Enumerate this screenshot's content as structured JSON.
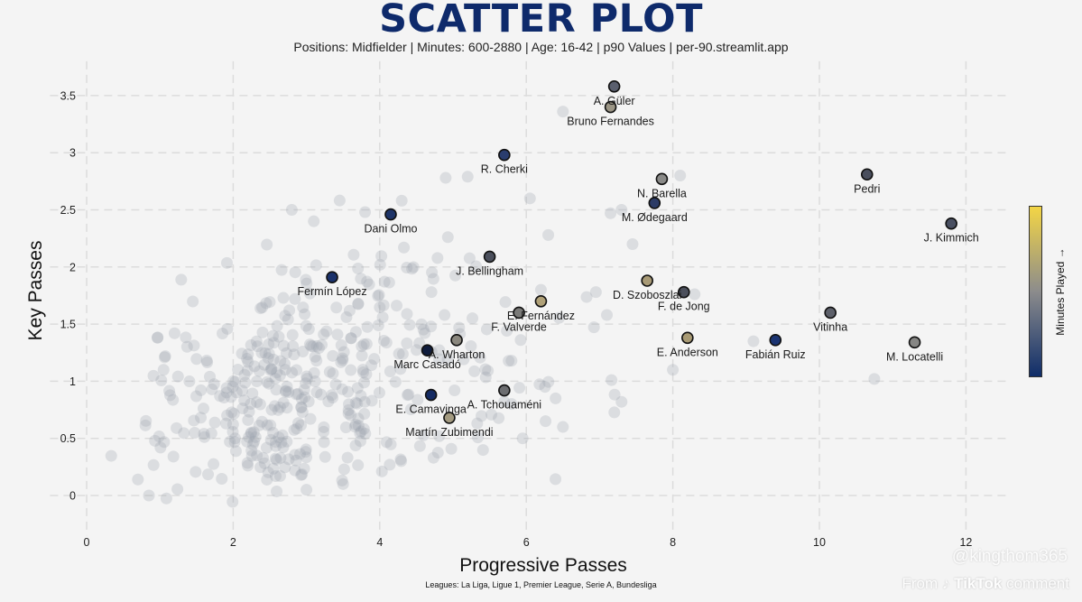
{
  "header": {
    "title": "SCATTER PLOT",
    "subtitle": "Positions: Midfielder  | Minutes: 600-2880 | Age: 16-42  | p90 Values | per-90.streamlit.app"
  },
  "footer": {
    "leagues": "Leagues: La Liga, Ligue 1, Premier League, Serie A, Bundesliga"
  },
  "watermark": {
    "handle": "@kingthom365",
    "from_prefix": "From",
    "brand": "TikTok",
    "suffix": "comment"
  },
  "colorbar": {
    "label": "Minutes Played →",
    "colors": [
      "#f3d545",
      "#8c8c8c",
      "#0f2d69"
    ]
  },
  "colors": {
    "background": "#f4f4f4",
    "title": "#0e2a6b",
    "grid": "#dcdcdc",
    "background_point": "#9aa0ad"
  },
  "chart_data": {
    "type": "scatter",
    "title": "SCATTER PLOT",
    "xlabel": "Progressive Passes",
    "ylabel": "Key Passes",
    "xlim": [
      -0.5,
      12.6
    ],
    "ylim": [
      -0.35,
      3.8
    ],
    "xticks": [
      0,
      2,
      4,
      6,
      8,
      10,
      12
    ],
    "yticks": [
      0,
      0.5,
      1,
      1.5,
      2,
      2.5,
      3,
      3.5
    ],
    "ytick_labels": [
      "0",
      "0.5",
      "1",
      "1.5",
      "2",
      "2.5",
      "3",
      "3.5"
    ],
    "grid": true,
    "highlighted": [
      {
        "name": "A. Güler",
        "x": 7.2,
        "y": 3.58,
        "color": "#5a5f6e",
        "label_pos": "below"
      },
      {
        "name": "Bruno Fernandes",
        "x": 7.15,
        "y": 3.4,
        "color": "#9b9585",
        "label_pos": "below"
      },
      {
        "name": "R. Cherki",
        "x": 5.7,
        "y": 2.98,
        "color": "#2a3d6e",
        "label_pos": "below"
      },
      {
        "name": "N. Barella",
        "x": 7.85,
        "y": 2.77,
        "color": "#8a8a88",
        "label_pos": "below"
      },
      {
        "name": "M. Ødegaard",
        "x": 7.75,
        "y": 2.56,
        "color": "#2c3b66",
        "label_pos": "below"
      },
      {
        "name": "Pedri",
        "x": 10.65,
        "y": 2.81,
        "color": "#4a4f5e",
        "label_pos": "below"
      },
      {
        "name": "J. Kimmich",
        "x": 11.8,
        "y": 2.38,
        "color": "#4a5062",
        "label_pos": "below"
      },
      {
        "name": "Dani Olmo",
        "x": 4.15,
        "y": 2.46,
        "color": "#1e3468",
        "label_pos": "below"
      },
      {
        "name": "J. Bellingham",
        "x": 5.5,
        "y": 2.09,
        "color": "#4b4f5c",
        "label_pos": "below"
      },
      {
        "name": "Fermín López",
        "x": 3.35,
        "y": 1.91,
        "color": "#1a316b",
        "label_pos": "below"
      },
      {
        "name": "D. Szoboszlai",
        "x": 7.65,
        "y": 1.88,
        "color": "#a89a76",
        "label_pos": "below"
      },
      {
        "name": "F. de Jong",
        "x": 8.15,
        "y": 1.78,
        "color": "#4c505c",
        "label_pos": "below"
      },
      {
        "name": "E. Fernández",
        "x": 6.2,
        "y": 1.7,
        "color": "#b0a178",
        "label_pos": "below"
      },
      {
        "name": "F. Valverde",
        "x": 5.9,
        "y": 1.6,
        "color": "#7a7a78",
        "label_pos": "below"
      },
      {
        "name": "Vitinha",
        "x": 10.15,
        "y": 1.6,
        "color": "#5d606a",
        "label_pos": "below"
      },
      {
        "name": "E. Anderson",
        "x": 8.2,
        "y": 1.38,
        "color": "#a89a74",
        "label_pos": "below"
      },
      {
        "name": "Fabián Ruiz",
        "x": 9.4,
        "y": 1.36,
        "color": "#1b3472",
        "label_pos": "below"
      },
      {
        "name": "M. Locatelli",
        "x": 11.3,
        "y": 1.34,
        "color": "#868684",
        "label_pos": "below"
      },
      {
        "name": "A. Wharton",
        "x": 5.05,
        "y": 1.36,
        "color": "#8a877e",
        "label_pos": "below"
      },
      {
        "name": "Marc Casadó",
        "x": 4.65,
        "y": 1.27,
        "color": "#0f1c3c",
        "label_pos": "below"
      },
      {
        "name": "A. Tchouaméni",
        "x": 5.7,
        "y": 0.92,
        "color": "#6c6d70",
        "label_pos": "below"
      },
      {
        "name": "E. Camavinga",
        "x": 4.7,
        "y": 0.88,
        "color": "#142a62",
        "label_pos": "below"
      },
      {
        "name": "Martín Zubimendi",
        "x": 4.95,
        "y": 0.68,
        "color": "#a39a80",
        "label_pos": "below"
      }
    ]
  }
}
